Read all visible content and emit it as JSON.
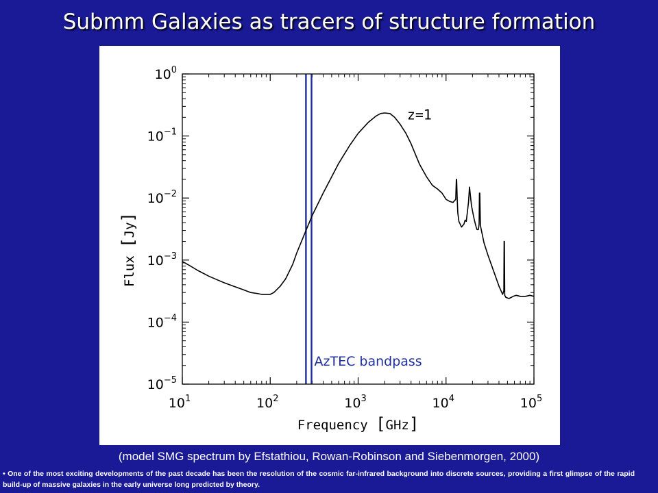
{
  "slide": {
    "title": "Submm Galaxies as tracers of structure formation",
    "caption": "(model SMG spectrum by Efstathiou, Rowan-Robinson and Siebenmorgen, 2000)",
    "footnote": "• One of the most exciting developments of the past decade has been the resolution of the cosmic far-infrared background into discrete sources, providing a first glimpse of the rapid build-up of massive galaxies in the early universe long predicted by theory."
  },
  "colors": {
    "background": "#1a1a96",
    "bandpass": "#1f2f9f",
    "curve": "#000000"
  },
  "chart_data": {
    "type": "line",
    "xlabel": "Frequency",
    "xlabel_unit": "GHz",
    "ylabel": "Flux",
    "ylabel_unit": "Jy",
    "xscale": "log",
    "yscale": "log",
    "xlim": [
      10,
      100000
    ],
    "ylim": [
      1e-05,
      1
    ],
    "x_ticks": [
      {
        "base": "10",
        "exp": "1",
        "value": 10
      },
      {
        "base": "10",
        "exp": "2",
        "value": 100
      },
      {
        "base": "10",
        "exp": "3",
        "value": 1000
      },
      {
        "base": "10",
        "exp": "4",
        "value": 10000
      },
      {
        "base": "10",
        "exp": "5",
        "value": 100000
      }
    ],
    "y_ticks": [
      {
        "base": "10",
        "exp": "0",
        "value": 1
      },
      {
        "base": "10",
        "exp": "−1",
        "value": 0.1
      },
      {
        "base": "10",
        "exp": "−2",
        "value": 0.01
      },
      {
        "base": "10",
        "exp": "−3",
        "value": 0.001
      },
      {
        "base": "10",
        "exp": "−4",
        "value": 0.0001
      },
      {
        "base": "10",
        "exp": "−5",
        "value": 1e-05
      }
    ],
    "series": [
      {
        "label": "z=1",
        "x": [
          10,
          12,
          15,
          20,
          25,
          30,
          40,
          50,
          60,
          70,
          80,
          90,
          100,
          110,
          130,
          150,
          180,
          200,
          250,
          300,
          400,
          500,
          600,
          800,
          1000,
          1300,
          1600,
          1800,
          2000,
          2300,
          2600,
          3000,
          3500,
          4000,
          4500,
          5000,
          6000,
          7000,
          8000,
          9000,
          10000,
          11000,
          12000,
          12900,
          13100,
          13200,
          13400,
          13600,
          14000,
          15000,
          16000,
          16500,
          17000,
          18000,
          18500,
          19500,
          20500,
          21000,
          22000,
          22500,
          23300,
          23800,
          24000,
          24200,
          24600,
          27000,
          30000,
          35000,
          40000,
          44000,
          45500,
          45800,
          46100,
          46500,
          48000,
          52000,
          58000,
          63000,
          70000,
          80000,
          90000,
          100000
        ],
        "y": [
          0.00095,
          0.00082,
          0.00068,
          0.00055,
          0.00048,
          0.00043,
          0.00037,
          0.00033,
          0.0003,
          0.00029,
          0.00028,
          0.00028,
          0.00028,
          0.0003,
          0.00038,
          0.0005,
          0.00085,
          0.0013,
          0.0028,
          0.0052,
          0.012,
          0.022,
          0.036,
          0.07,
          0.11,
          0.165,
          0.21,
          0.23,
          0.235,
          0.23,
          0.2,
          0.155,
          0.11,
          0.075,
          0.05,
          0.035,
          0.022,
          0.016,
          0.014,
          0.012,
          0.0095,
          0.0088,
          0.0085,
          0.0095,
          0.02,
          0.02,
          0.0095,
          0.0058,
          0.0042,
          0.0034,
          0.0038,
          0.0044,
          0.0042,
          0.0085,
          0.015,
          0.0075,
          0.0052,
          0.0044,
          0.0034,
          0.0031,
          0.0031,
          0.0038,
          0.012,
          0.012,
          0.0036,
          0.0019,
          0.0012,
          0.00065,
          0.00038,
          0.00028,
          0.00032,
          0.002,
          0.002,
          0.00027,
          0.00025,
          0.00024,
          0.00026,
          0.00027,
          0.00026,
          0.00026,
          0.00027,
          0.00026
        ]
      }
    ],
    "vertical_lines": [
      {
        "x": 255,
        "label": "AzTEC bandpass"
      },
      {
        "x": 295
      }
    ],
    "legend": "none",
    "grid": false
  }
}
